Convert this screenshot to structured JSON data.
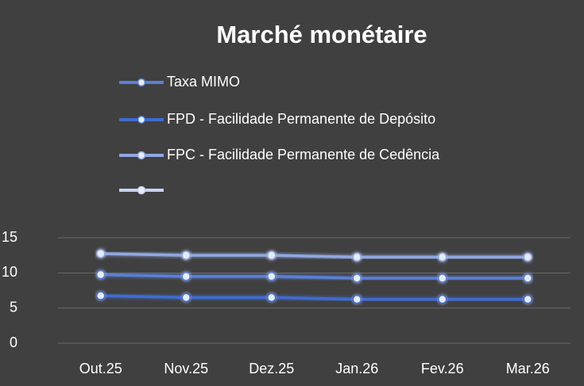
{
  "chart_data": {
    "type": "line",
    "title": "Marché monétaire",
    "categories": [
      "Out.25",
      "Nov.25",
      "Dez.25",
      "Jan.26",
      "Fev.26",
      "Mar.26"
    ],
    "series": [
      {
        "name": "Taxa MIMO",
        "color": "#5a80d6",
        "values": [
          9.75,
          9.5,
          9.5,
          9.25,
          9.25,
          9.25
        ]
      },
      {
        "name": "FPD - Facilidade Permanente de Depósito",
        "color": "#3f6cd0",
        "values": [
          6.75,
          6.5,
          6.5,
          6.25,
          6.25,
          6.25
        ]
      },
      {
        "name": "FPC - Facilidade Permanente de Cedência",
        "color": "#90a8e2",
        "values": [
          12.75,
          12.5,
          12.5,
          12.25,
          12.25,
          12.25
        ]
      },
      {
        "name": null,
        "color": "#c8d2f0",
        "values": [
          null,
          null,
          null,
          null,
          null,
          null
        ]
      }
    ],
    "ylim": [
      0,
      15
    ],
    "yticks": [
      0,
      5,
      10,
      15
    ],
    "grid": true
  }
}
